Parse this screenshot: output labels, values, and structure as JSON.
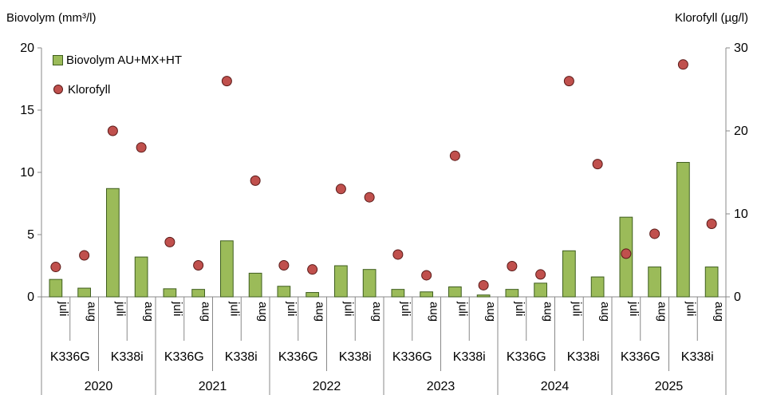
{
  "chart_data": {
    "type": "bar",
    "title": "",
    "ylabel_left": "Biovolym (mm³/l)",
    "ylabel_right": "Klorofyll (µg/l)",
    "ylim_left": [
      0,
      20
    ],
    "yticks_left": [
      "0",
      "5",
      "10",
      "15",
      "20"
    ],
    "ylim_right": [
      0,
      30
    ],
    "yticks_right": [
      "0",
      "10",
      "20",
      "30"
    ],
    "grid": false,
    "legend_position": "top-left",
    "colors": {
      "bar": "#9bbb59",
      "bar_edge": "#3f5e1f",
      "dot": "#c0504d",
      "dot_edge": "#5a1a18"
    },
    "x_levels": {
      "month": [
        "juli",
        "aug",
        "juli",
        "aug",
        "juli",
        "aug",
        "juli",
        "aug",
        "juli",
        "aug",
        "juli",
        "aug",
        "juli",
        "aug",
        "juli",
        "aug",
        "juli",
        "aug",
        "juli",
        "aug",
        "juli",
        "aug",
        "juli",
        "aug"
      ],
      "station": [
        "K336G",
        "K338i",
        "K336G",
        "K338i",
        "K336G",
        "K338i",
        "K336G",
        "K338i",
        "K336G",
        "K338i",
        "K336G",
        "K338i"
      ],
      "year": [
        "2020",
        "2021",
        "2022",
        "2023",
        "2024",
        "2025"
      ]
    },
    "series": [
      {
        "name": "Biovolym AU+MX+HT",
        "type": "bar",
        "axis": "left",
        "values": [
          1.4,
          0.7,
          8.7,
          3.2,
          0.65,
          0.6,
          4.5,
          1.9,
          0.85,
          0.35,
          2.5,
          2.2,
          0.6,
          0.4,
          0.8,
          0.15,
          0.6,
          1.1,
          3.7,
          1.6,
          6.4,
          2.4,
          10.8,
          2.4
        ]
      },
      {
        "name": "Klorofyll",
        "type": "scatter",
        "axis": "right",
        "values": [
          3.6,
          5.0,
          20.0,
          18.0,
          6.6,
          3.8,
          26.0,
          14.0,
          3.8,
          3.3,
          13.0,
          12.0,
          5.1,
          2.6,
          17.0,
          1.4,
          3.7,
          2.7,
          26.0,
          16.0,
          5.2,
          7.6,
          28.0,
          8.8
        ]
      }
    ]
  }
}
